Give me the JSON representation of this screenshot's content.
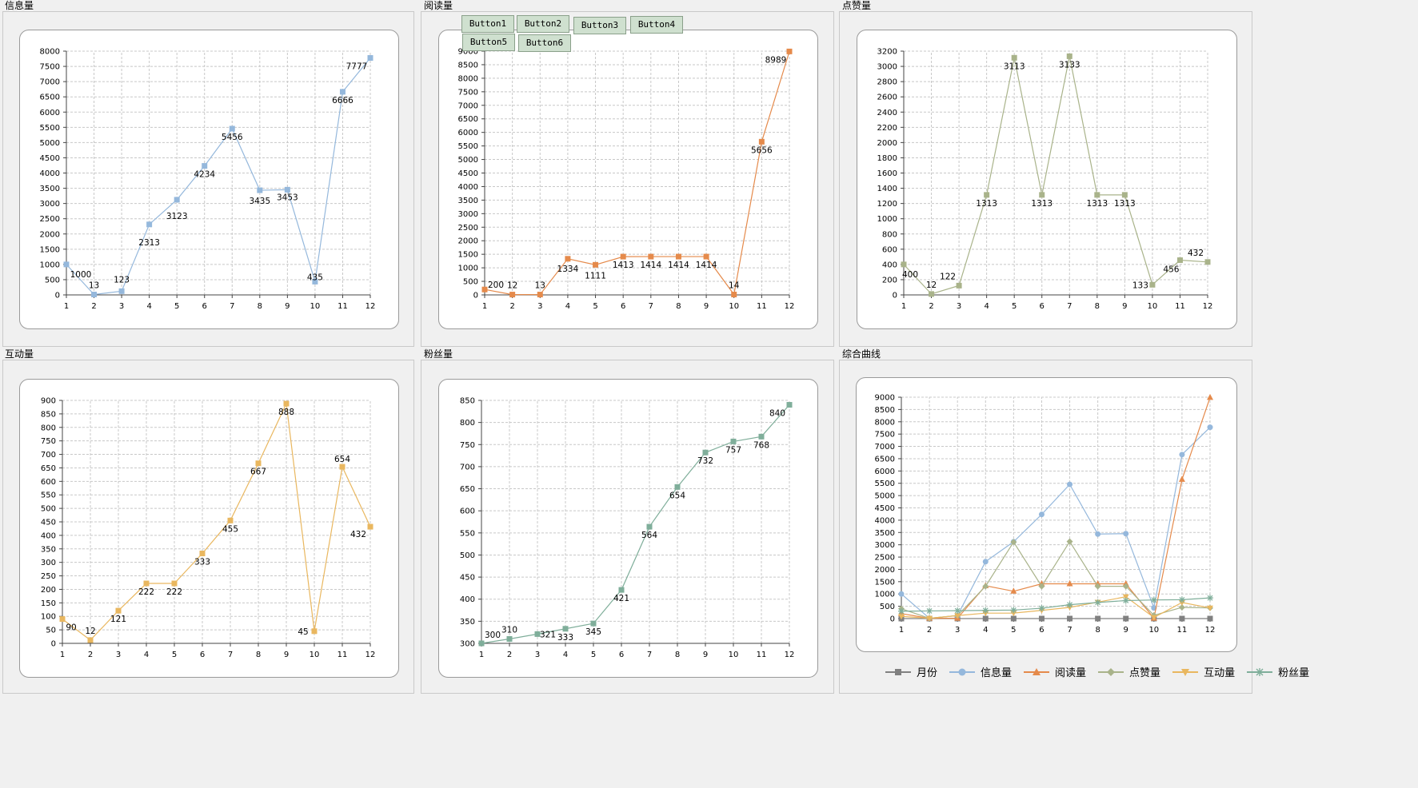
{
  "panels": [
    {
      "id": "p1",
      "title": "信息量"
    },
    {
      "id": "p2",
      "title": "阅读量"
    },
    {
      "id": "p3",
      "title": "点赞量"
    },
    {
      "id": "p4",
      "title": "互动量"
    },
    {
      "id": "p5",
      "title": "粉丝量"
    },
    {
      "id": "p6",
      "title": "综合曲线"
    }
  ],
  "buttons": [
    "Button1",
    "Button2",
    "Button3",
    "Button4",
    "Button5",
    "Button6"
  ],
  "colors": {
    "info": "#95b8dc",
    "read": "#e58a4b",
    "like": "#a9b38a",
    "interact": "#e9b75f",
    "fans": "#7fae9a",
    "month": "#808080"
  },
  "chart_data": [
    {
      "type": "line",
      "panel": "p1",
      "x": [
        1,
        2,
        3,
        4,
        5,
        6,
        7,
        8,
        9,
        10,
        11,
        12
      ],
      "values": [
        1000,
        13,
        123,
        2313,
        3123,
        4234,
        5456,
        3435,
        3453,
        435,
        6666,
        7777
      ],
      "ylim": [
        0,
        8000
      ],
      "ystep": 500,
      "grid": true,
      "color_key": "info",
      "marker": "square"
    },
    {
      "type": "line",
      "panel": "p2",
      "x": [
        1,
        2,
        3,
        4,
        5,
        6,
        7,
        8,
        9,
        10,
        11,
        12
      ],
      "values": [
        200,
        12,
        13,
        1334,
        1111,
        1413,
        1414,
        1414,
        1414,
        14,
        5656,
        8989
      ],
      "ylim": [
        0,
        9000
      ],
      "ystep": 500,
      "grid": true,
      "color_key": "read",
      "marker": "square"
    },
    {
      "type": "line",
      "panel": "p3",
      "x": [
        1,
        2,
        3,
        4,
        5,
        6,
        7,
        8,
        9,
        10,
        11,
        12
      ],
      "values": [
        400,
        12,
        122,
        1313,
        3113,
        1313,
        3133,
        1313,
        1313,
        133,
        456,
        432
      ],
      "ylim": [
        0,
        3200
      ],
      "ystep": 200,
      "grid": true,
      "color_key": "like",
      "marker": "square"
    },
    {
      "type": "line",
      "panel": "p4",
      "x": [
        1,
        2,
        3,
        4,
        5,
        6,
        7,
        8,
        9,
        10,
        11,
        12
      ],
      "values": [
        90,
        12,
        121,
        222,
        222,
        333,
        455,
        667,
        888,
        45,
        654,
        432
      ],
      "ylim": [
        0,
        900
      ],
      "ystep": 50,
      "grid": true,
      "color_key": "interact",
      "marker": "square"
    },
    {
      "type": "line",
      "panel": "p5",
      "x": [
        1,
        2,
        3,
        4,
        5,
        6,
        7,
        8,
        9,
        10,
        11,
        12
      ],
      "values": [
        300,
        310,
        321,
        333,
        345,
        421,
        564,
        654,
        732,
        757,
        768,
        840
      ],
      "ylim": [
        300,
        850
      ],
      "ystep": 50,
      "grid": true,
      "color_key": "fans",
      "marker": "square"
    },
    {
      "type": "line",
      "panel": "p6",
      "x": [
        1,
        2,
        3,
        4,
        5,
        6,
        7,
        8,
        9,
        10,
        11,
        12
      ],
      "ylim": [
        0,
        9000
      ],
      "ystep": 500,
      "grid": true,
      "show_labels": false,
      "legend": "bottom",
      "series": [
        {
          "name": "月份",
          "color_key": "month",
          "marker": "square",
          "values": [
            0,
            0,
            0,
            0,
            0,
            0,
            0,
            0,
            0,
            0,
            0,
            0
          ]
        },
        {
          "name": "信息量",
          "color_key": "info",
          "marker": "circle",
          "values": [
            1000,
            13,
            123,
            2313,
            3123,
            4234,
            5456,
            3435,
            3453,
            435,
            6666,
            7777
          ]
        },
        {
          "name": "阅读量",
          "color_key": "read",
          "marker": "triangle",
          "values": [
            200,
            12,
            13,
            1334,
            1111,
            1413,
            1414,
            1414,
            1414,
            14,
            5656,
            8989
          ]
        },
        {
          "name": "点赞量",
          "color_key": "like",
          "marker": "diamond",
          "values": [
            400,
            12,
            122,
            1313,
            3113,
            1313,
            3133,
            1313,
            1313,
            133,
            456,
            432
          ]
        },
        {
          "name": "互动量",
          "color_key": "interact",
          "marker": "tri-down",
          "values": [
            90,
            12,
            121,
            222,
            222,
            333,
            455,
            667,
            888,
            45,
            654,
            432
          ]
        },
        {
          "name": "粉丝量",
          "color_key": "fans",
          "marker": "star",
          "values": [
            300,
            310,
            321,
            333,
            345,
            421,
            564,
            654,
            732,
            757,
            768,
            840
          ]
        }
      ]
    }
  ]
}
